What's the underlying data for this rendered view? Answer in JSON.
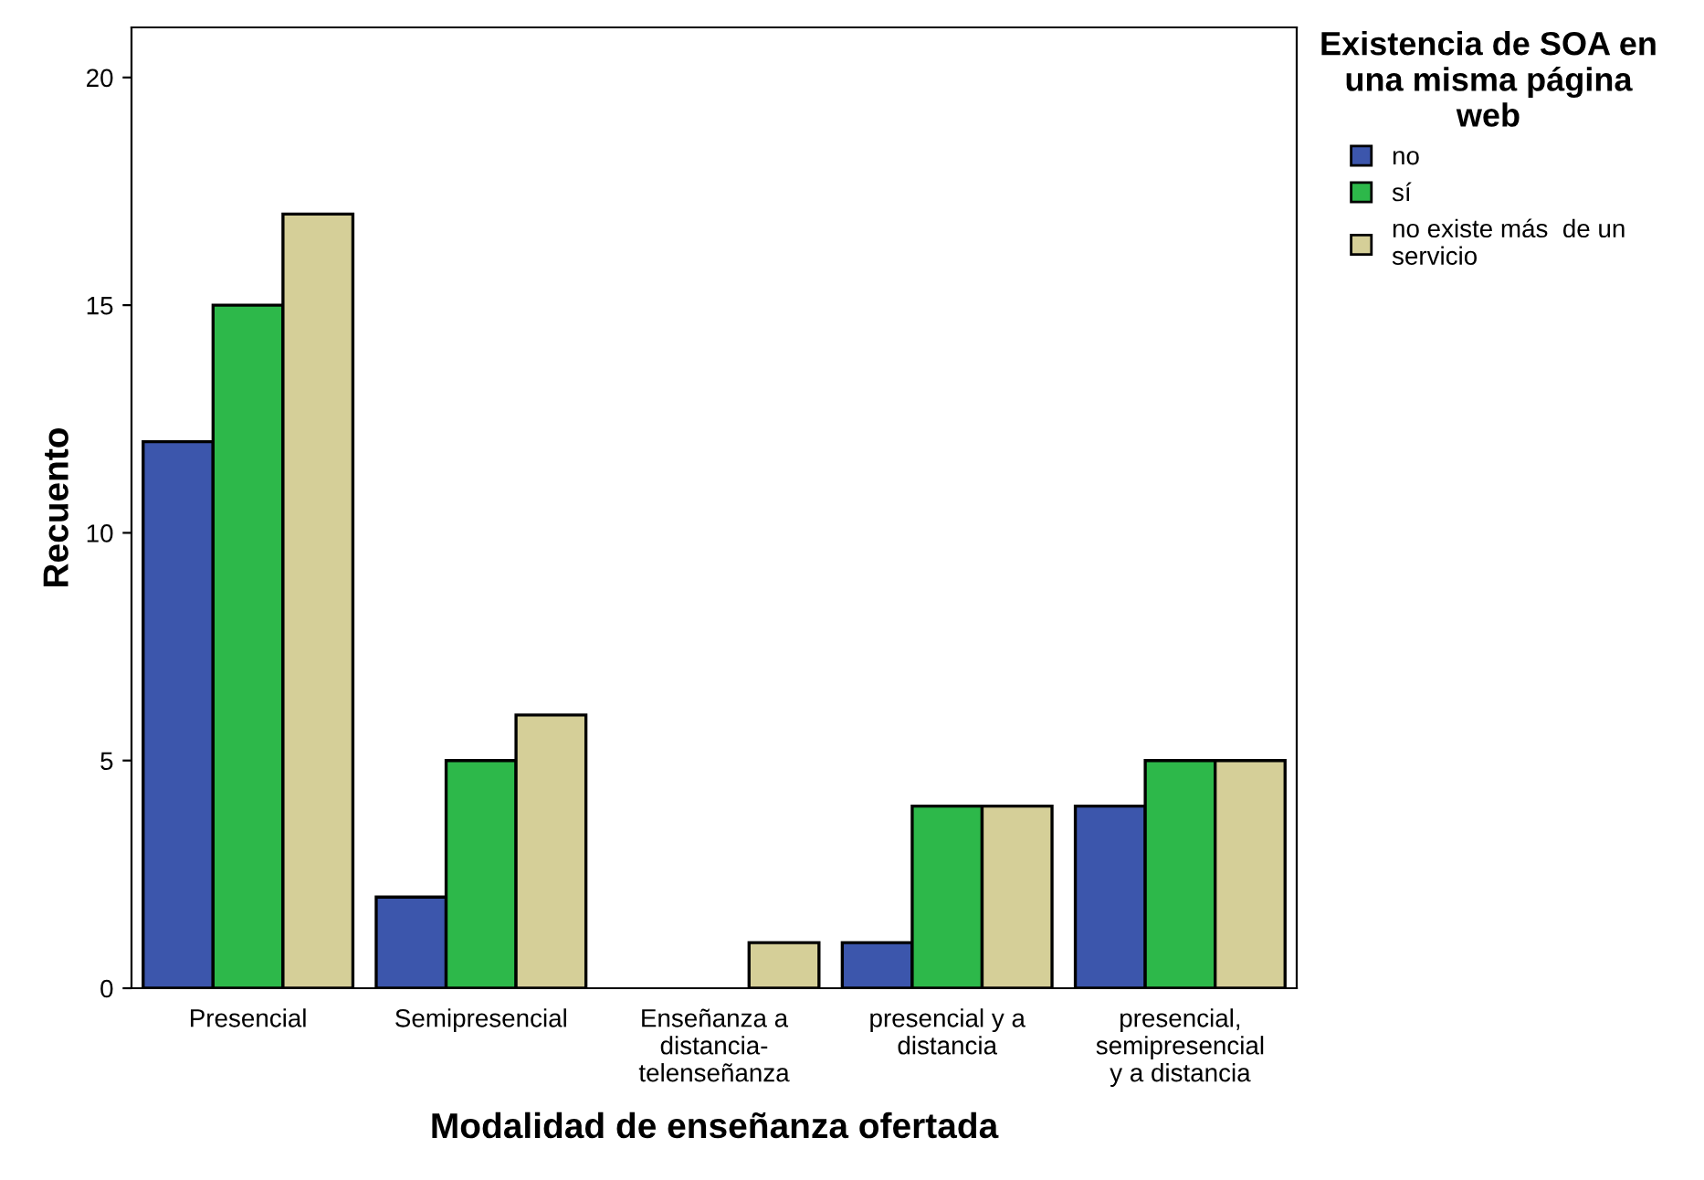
{
  "chart_data": {
    "type": "bar",
    "categories": [
      "Presencial",
      "Semipresencial",
      "Enseñanza a\ndistancia-\ntelenseñanza",
      "presencial y a\ndistancia",
      "presencial,\nsemipresencial\ny a distancia"
    ],
    "series": [
      {
        "name": "no",
        "color": "#3c56ac",
        "values": [
          12,
          2,
          0,
          1,
          4
        ]
      },
      {
        "name": "sí",
        "color": "#2db84a",
        "values": [
          15,
          5,
          0,
          4,
          5
        ]
      },
      {
        "name": "no existe más  de un\nservicio",
        "color": "#d5cf98",
        "values": [
          17,
          6,
          1,
          4,
          5
        ]
      }
    ],
    "xlabel": "Modalidad de enseñanza ofertada",
    "ylabel": "Recuento",
    "legend_title": "Existencia de SOA en\nuna misma página\nweb",
    "ylim": [
      0,
      21.1
    ],
    "yticks": [
      0,
      5,
      10,
      15,
      20
    ],
    "grid": false,
    "legend": "right"
  }
}
